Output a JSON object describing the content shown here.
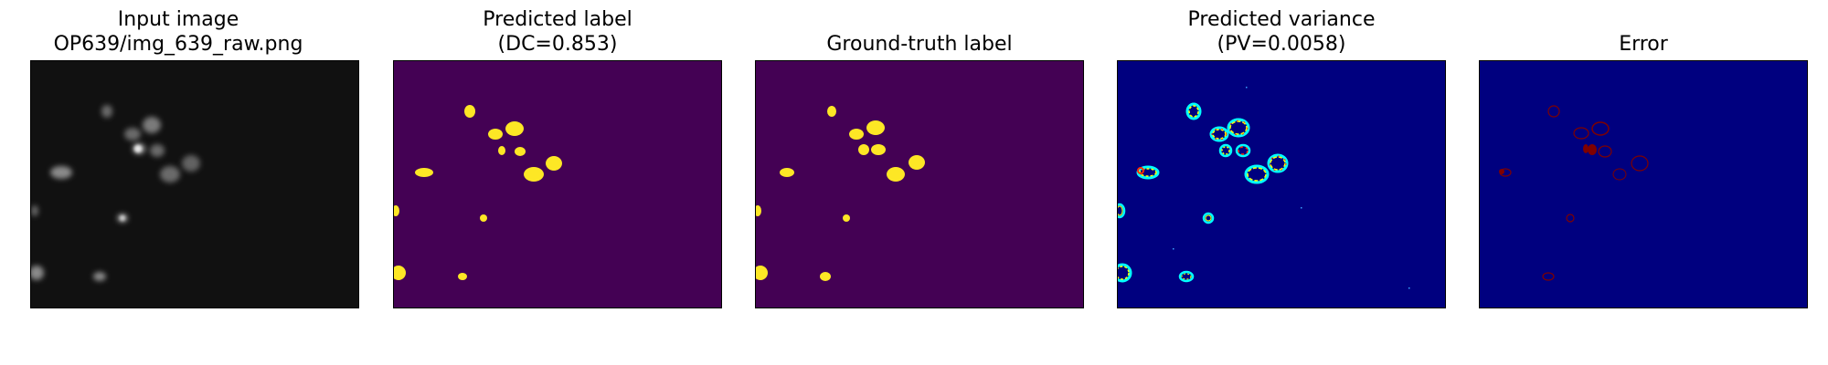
{
  "figure": {
    "panels": [
      {
        "id": "input",
        "title_line1": "Input image",
        "title_line2": "OP639/img_639_raw.png",
        "colormap": "gray"
      },
      {
        "id": "predicted-label",
        "title_line1": "Predicted label",
        "title_line2": "(DC=0.853)",
        "colormap": "viridis"
      },
      {
        "id": "ground-truth",
        "title_line1": "",
        "title_line2": "Ground-truth label",
        "colormap": "viridis"
      },
      {
        "id": "predicted-variance",
        "title_line1": "Predicted variance",
        "title_line2": "(PV=0.0058)",
        "colormap": "jet"
      },
      {
        "id": "error",
        "title_line1": "",
        "title_line2": "Error",
        "colormap": "jet"
      }
    ],
    "colors": {
      "input_background": "#111111",
      "label_background": "#440154",
      "label_foreground": "#fde725",
      "jet_background": "#00007f",
      "variance_ring_outer": "#00ffff",
      "variance_ring_mid": "#ffff00",
      "variance_ring_hot": "#ff2a00",
      "error_mark": "#7f0000"
    }
  }
}
